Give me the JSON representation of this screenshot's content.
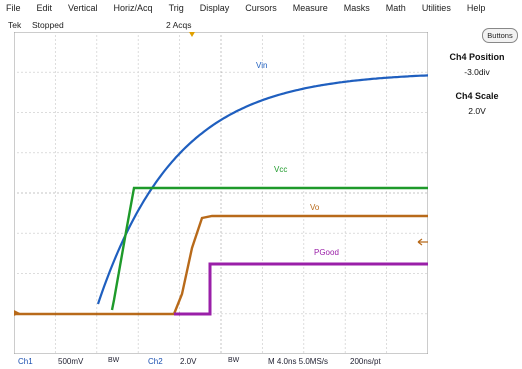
{
  "menu": [
    "File",
    "Edit",
    "Vertical",
    "Horiz/Acq",
    "Trig",
    "Display",
    "Cursors",
    "Measure",
    "Masks",
    "Math",
    "Utilities",
    "Help"
  ],
  "status": {
    "brand": "Tek",
    "state": "Stopped",
    "acqs": "2 Acqs"
  },
  "buttons_label": "Buttons",
  "side": {
    "position_title": "Ch4 Position",
    "position_value": "-3.0div",
    "scale_title": "Ch4 Scale",
    "scale_value": "2.0V"
  },
  "bottom": {
    "ch1_name": "Ch1",
    "ch1_scale": "500mV",
    "ch1_bw": "BW",
    "ch2_name": "Ch2",
    "ch2_scale": "2.0V",
    "ch2_bw": "BW",
    "timebase": "M 4.0ns 5.0MS/s",
    "record": "200ns/pt"
  },
  "traces": {
    "vin_label": "Vin",
    "vcc_label": "Vcc",
    "vo_label": "Vo",
    "pgood_label": "PGood"
  },
  "colors": {
    "vin": "#1f5fbf",
    "vcc": "#1e9a2a",
    "vo": "#b86a1a",
    "pgood": "#9a1fa8",
    "grid": "#9a9a9a",
    "trigger": "#e0a000"
  },
  "icons": [
    "trigger-position-marker-icon",
    "ground-reference-marker-icon",
    "trigger-level-arrow-icon"
  ]
}
